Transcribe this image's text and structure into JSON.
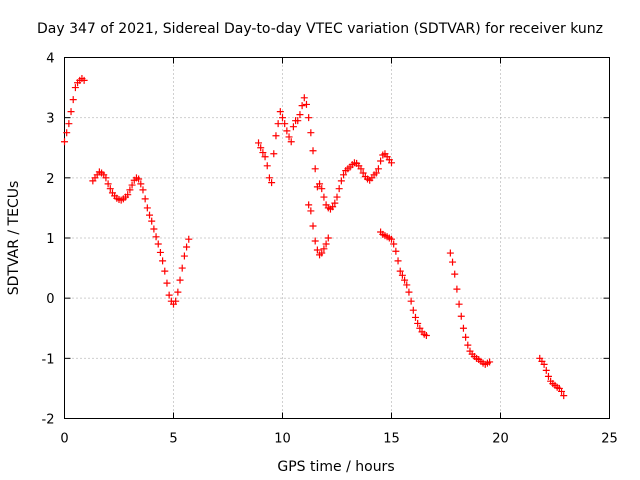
{
  "chart_data": {
    "type": "scatter",
    "title": "Day 347 of 2021, Sidereal Day-to-day VTEC variation (SDTVAR) for receiver kunz",
    "xlabel": "GPS time / hours",
    "ylabel": "SDTVAR / TECUs",
    "xlim": [
      0,
      25
    ],
    "ylim": [
      -2,
      4
    ],
    "xticks": [
      "0",
      "5",
      "10",
      "15",
      "20",
      "25"
    ],
    "yticks": [
      "-2",
      "-1",
      "0",
      "1",
      "2",
      "3",
      "4"
    ],
    "grid": true,
    "marker": "+",
    "color": "#ff0000",
    "series": [
      {
        "points": [
          [
            0.0,
            2.6
          ],
          [
            0.1,
            2.75
          ],
          [
            0.2,
            2.9
          ],
          [
            0.3,
            3.1
          ],
          [
            0.4,
            3.3
          ],
          [
            0.5,
            3.5
          ],
          [
            0.6,
            3.58
          ],
          [
            0.7,
            3.62
          ],
          [
            0.8,
            3.65
          ],
          [
            0.9,
            3.62
          ],
          [
            1.3,
            1.95
          ],
          [
            1.4,
            2.0
          ],
          [
            1.5,
            2.05
          ],
          [
            1.6,
            2.1
          ],
          [
            1.7,
            2.08
          ],
          [
            1.8,
            2.05
          ],
          [
            1.9,
            2.0
          ],
          [
            2.0,
            1.9
          ],
          [
            2.1,
            1.82
          ],
          [
            2.2,
            1.75
          ],
          [
            2.3,
            1.7
          ],
          [
            2.4,
            1.66
          ],
          [
            2.5,
            1.64
          ],
          [
            2.6,
            1.63
          ],
          [
            2.7,
            1.65
          ],
          [
            2.8,
            1.68
          ],
          [
            2.9,
            1.72
          ],
          [
            3.0,
            1.8
          ],
          [
            3.1,
            1.88
          ],
          [
            3.2,
            1.96
          ],
          [
            3.3,
            2.0
          ],
          [
            3.4,
            1.98
          ],
          [
            3.5,
            1.9
          ],
          [
            3.6,
            1.8
          ],
          [
            3.7,
            1.65
          ],
          [
            3.8,
            1.5
          ],
          [
            3.9,
            1.38
          ],
          [
            4.0,
            1.28
          ],
          [
            4.1,
            1.15
          ],
          [
            4.2,
            1.02
          ],
          [
            4.3,
            0.9
          ],
          [
            4.4,
            0.76
          ],
          [
            4.5,
            0.62
          ],
          [
            4.6,
            0.45
          ],
          [
            4.7,
            0.25
          ],
          [
            4.8,
            0.05
          ],
          [
            4.9,
            -0.05
          ],
          [
            5.0,
            -0.1
          ],
          [
            5.1,
            -0.05
          ],
          [
            5.2,
            0.1
          ],
          [
            5.3,
            0.3
          ],
          [
            5.4,
            0.5
          ],
          [
            5.5,
            0.7
          ],
          [
            5.6,
            0.85
          ],
          [
            5.7,
            0.98
          ],
          [
            8.9,
            2.58
          ],
          [
            9.0,
            2.5
          ],
          [
            9.1,
            2.42
          ],
          [
            9.2,
            2.35
          ],
          [
            9.3,
            2.2
          ],
          [
            9.4,
            2.0
          ],
          [
            9.5,
            1.92
          ],
          [
            9.6,
            2.4
          ],
          [
            9.7,
            2.7
          ],
          [
            9.8,
            2.9
          ],
          [
            9.9,
            3.1
          ],
          [
            10.0,
            3.0
          ],
          [
            10.1,
            2.9
          ],
          [
            10.2,
            2.78
          ],
          [
            10.3,
            2.68
          ],
          [
            10.4,
            2.6
          ],
          [
            10.5,
            2.85
          ],
          [
            10.6,
            2.95
          ],
          [
            10.7,
            2.95
          ],
          [
            10.8,
            3.05
          ],
          [
            10.9,
            3.2
          ],
          [
            11.0,
            3.33
          ],
          [
            11.1,
            3.22
          ],
          [
            11.2,
            3.0
          ],
          [
            11.3,
            2.75
          ],
          [
            11.4,
            2.45
          ],
          [
            11.5,
            2.15
          ],
          [
            11.6,
            1.85
          ],
          [
            11.7,
            1.9
          ],
          [
            11.8,
            1.82
          ],
          [
            11.9,
            1.68
          ],
          [
            12.0,
            1.55
          ],
          [
            12.1,
            1.5
          ],
          [
            12.2,
            1.48
          ],
          [
            12.3,
            1.52
          ],
          [
            12.4,
            1.58
          ],
          [
            12.5,
            1.68
          ],
          [
            12.6,
            1.82
          ],
          [
            12.7,
            1.95
          ],
          [
            12.8,
            2.05
          ],
          [
            12.9,
            2.12
          ],
          [
            13.0,
            2.15
          ],
          [
            13.1,
            2.18
          ],
          [
            13.2,
            2.22
          ],
          [
            13.3,
            2.25
          ],
          [
            13.4,
            2.24
          ],
          [
            13.5,
            2.2
          ],
          [
            13.6,
            2.15
          ],
          [
            13.7,
            2.08
          ],
          [
            13.8,
            2.02
          ],
          [
            13.9,
            1.98
          ],
          [
            14.0,
            1.96
          ],
          [
            14.1,
            2.0
          ],
          [
            14.2,
            2.05
          ],
          [
            14.3,
            2.08
          ],
          [
            14.4,
            2.15
          ],
          [
            14.5,
            2.28
          ],
          [
            14.6,
            2.38
          ],
          [
            14.7,
            2.4
          ],
          [
            14.8,
            2.35
          ],
          [
            14.9,
            2.3
          ],
          [
            15.0,
            2.25
          ],
          [
            11.2,
            1.55
          ],
          [
            11.3,
            1.45
          ],
          [
            11.4,
            1.2
          ],
          [
            11.5,
            0.95
          ],
          [
            11.6,
            0.8
          ],
          [
            11.7,
            0.72
          ],
          [
            11.8,
            0.75
          ],
          [
            11.9,
            0.82
          ],
          [
            12.0,
            0.9
          ],
          [
            12.1,
            1.0
          ],
          [
            14.5,
            1.1
          ],
          [
            14.6,
            1.06
          ],
          [
            14.7,
            1.04
          ],
          [
            14.8,
            1.02
          ],
          [
            14.9,
            1.0
          ],
          [
            15.0,
            0.98
          ],
          [
            15.1,
            0.9
          ],
          [
            15.2,
            0.78
          ],
          [
            15.3,
            0.62
          ],
          [
            15.4,
            0.45
          ],
          [
            15.5,
            0.38
          ],
          [
            15.6,
            0.3
          ],
          [
            15.7,
            0.22
          ],
          [
            15.8,
            0.1
          ],
          [
            15.9,
            -0.05
          ],
          [
            16.0,
            -0.2
          ],
          [
            16.1,
            -0.32
          ],
          [
            16.2,
            -0.42
          ],
          [
            16.3,
            -0.5
          ],
          [
            16.4,
            -0.56
          ],
          [
            16.5,
            -0.6
          ],
          [
            16.6,
            -0.62
          ],
          [
            17.7,
            0.75
          ],
          [
            17.8,
            0.6
          ],
          [
            17.9,
            0.4
          ],
          [
            18.0,
            0.15
          ],
          [
            18.1,
            -0.1
          ],
          [
            18.2,
            -0.3
          ],
          [
            18.3,
            -0.5
          ],
          [
            18.4,
            -0.65
          ],
          [
            18.5,
            -0.78
          ],
          [
            18.6,
            -0.88
          ],
          [
            18.7,
            -0.93
          ],
          [
            18.8,
            -0.97
          ],
          [
            18.9,
            -1.0
          ],
          [
            19.0,
            -1.02
          ],
          [
            19.1,
            -1.05
          ],
          [
            19.2,
            -1.08
          ],
          [
            19.3,
            -1.1
          ],
          [
            19.4,
            -1.08
          ],
          [
            19.5,
            -1.06
          ],
          [
            21.8,
            -1.0
          ],
          [
            21.9,
            -1.05
          ],
          [
            22.0,
            -1.1
          ],
          [
            22.1,
            -1.2
          ],
          [
            22.2,
            -1.3
          ],
          [
            22.3,
            -1.38
          ],
          [
            22.4,
            -1.42
          ],
          [
            22.5,
            -1.45
          ],
          [
            22.6,
            -1.48
          ],
          [
            22.7,
            -1.5
          ],
          [
            22.8,
            -1.55
          ],
          [
            22.9,
            -1.62
          ]
        ]
      }
    ]
  }
}
